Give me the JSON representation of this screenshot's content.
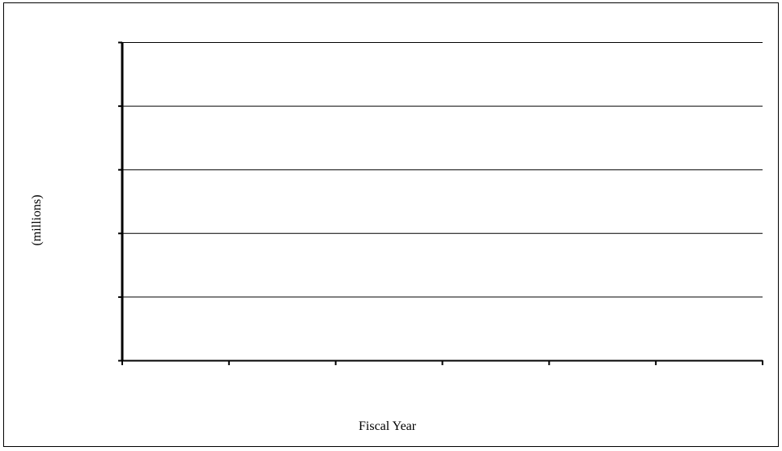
{
  "chart_data": {
    "type": "bar",
    "title": "",
    "xlabel": "Fiscal Year",
    "ylabel": "(millions)",
    "categories": [
      "",
      "",
      "",
      "",
      "",
      ""
    ],
    "series": [],
    "y_gridlines": 5,
    "grid": true,
    "legend": "none",
    "colors": {
      "axis": "#000000",
      "grid": "#000000",
      "background": "#ffffff"
    }
  }
}
